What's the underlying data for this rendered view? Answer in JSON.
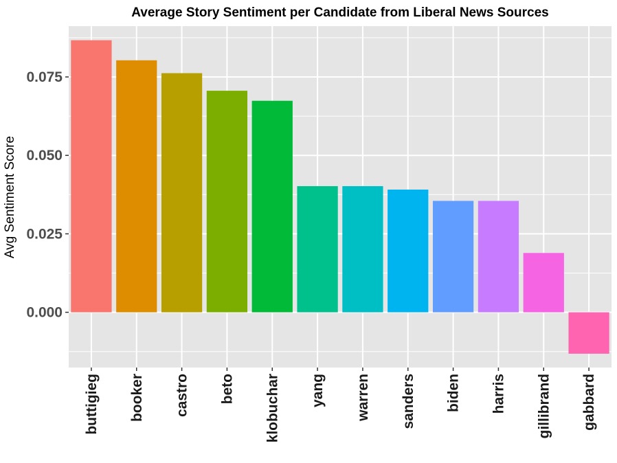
{
  "chart_data": {
    "type": "bar",
    "title": "Average Story Sentiment per Candidate from Liberal News Sources",
    "xlabel": "",
    "ylabel": "Avg Sentiment Score",
    "categories": [
      "buttigieg",
      "booker",
      "castro",
      "beto",
      "klobuchar",
      "yang",
      "warren",
      "sanders",
      "biden",
      "harris",
      "gillibrand",
      "gabbard"
    ],
    "values": [
      0.0867,
      0.0803,
      0.0762,
      0.0706,
      0.0674,
      0.0402,
      0.0402,
      0.0391,
      0.0355,
      0.0355,
      0.0189,
      -0.0132
    ],
    "colors": [
      "#F8766D",
      "#DE8C00",
      "#B79F00",
      "#7CAE00",
      "#00BA38",
      "#00C08B",
      "#00BFC4",
      "#00B4F0",
      "#619CFF",
      "#C77CFF",
      "#F564E3",
      "#FF64B0"
    ],
    "yticks": [
      0.0,
      0.025,
      0.05,
      0.075
    ],
    "ytick_labels": [
      "0.000",
      "0.025",
      "0.050",
      "0.075"
    ],
    "ylim": [
      -0.0176,
      0.0912
    ],
    "grid": true,
    "panel_background": "#E5E5E5",
    "grid_color": "#FFFFFF",
    "legend": "none"
  }
}
